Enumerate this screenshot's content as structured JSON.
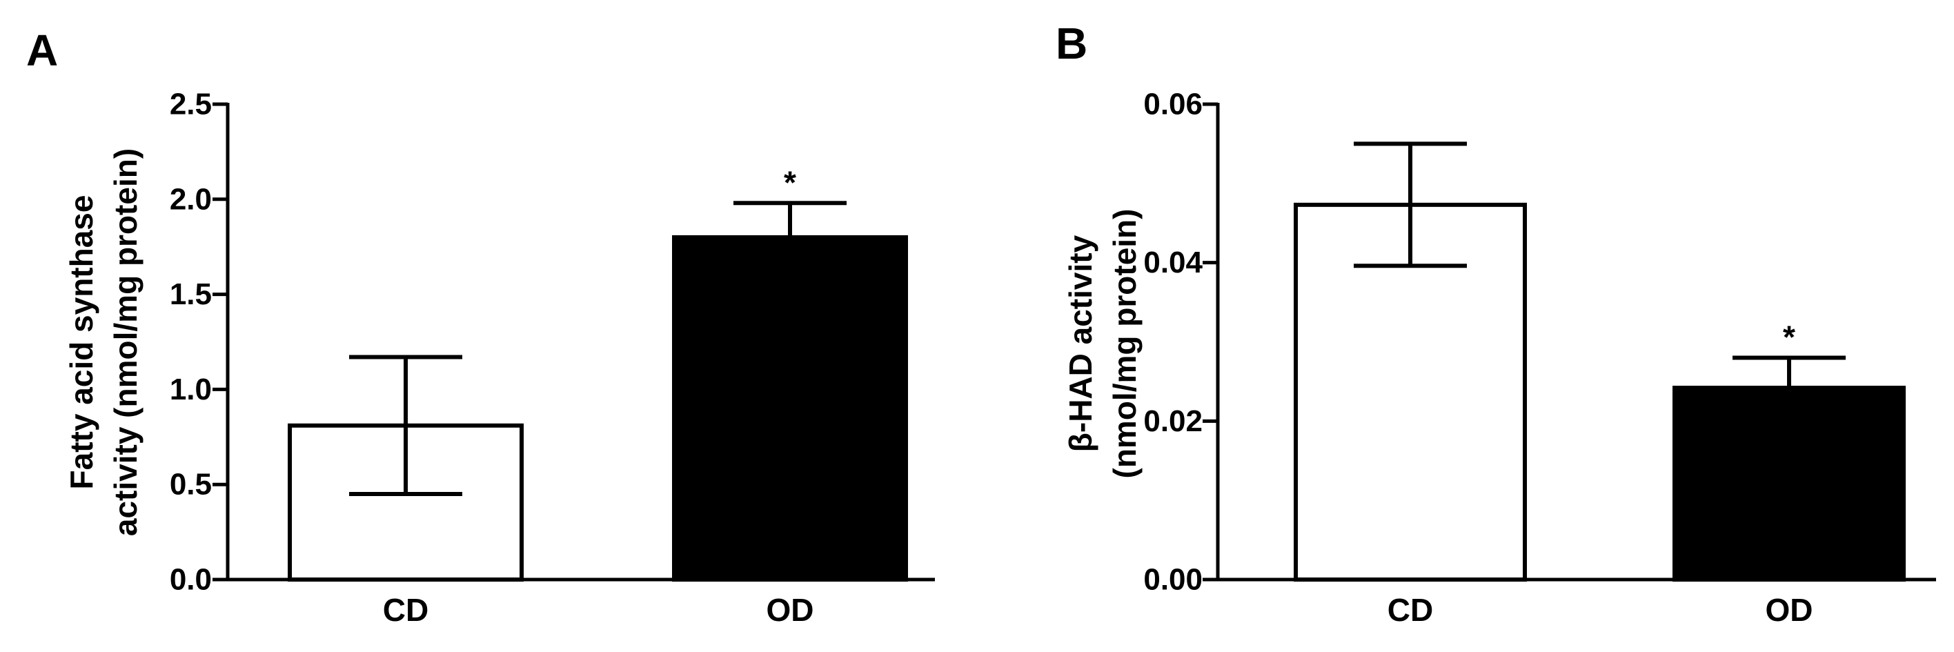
{
  "chart_data": [
    {
      "panel": "A",
      "type": "bar",
      "categories": [
        "CD",
        "OD"
      ],
      "values": [
        0.81,
        1.8
      ],
      "error": [
        0.36,
        0.18
      ],
      "fills": [
        "#ffffff",
        "#000000"
      ],
      "significance": [
        "",
        "*"
      ],
      "ylabel_lines": [
        "Fatty acid synthase",
        "activity (nmol/mg protein)"
      ],
      "ylim": [
        0,
        2.5
      ],
      "yticks": [
        "0.0",
        "0.5",
        "1.0",
        "1.5",
        "2.0",
        "2.5"
      ],
      "ytick_values": [
        0,
        0.5,
        1.0,
        1.5,
        2.0,
        2.5
      ]
    },
    {
      "panel": "B",
      "type": "bar",
      "categories": [
        "CD",
        "OD"
      ],
      "values": [
        0.0473,
        0.0242
      ],
      "error": [
        0.0077,
        0.0038
      ],
      "fills": [
        "#ffffff",
        "#000000"
      ],
      "significance": [
        "",
        "*"
      ],
      "ylabel_lines": [
        "β-HAD activity",
        "(nmol/mg protein)"
      ],
      "ylim": [
        0,
        0.06
      ],
      "yticks": [
        "0.00",
        "0.02",
        "0.04",
        "0.06"
      ],
      "ytick_values": [
        0,
        0.02,
        0.04,
        0.06
      ]
    }
  ]
}
